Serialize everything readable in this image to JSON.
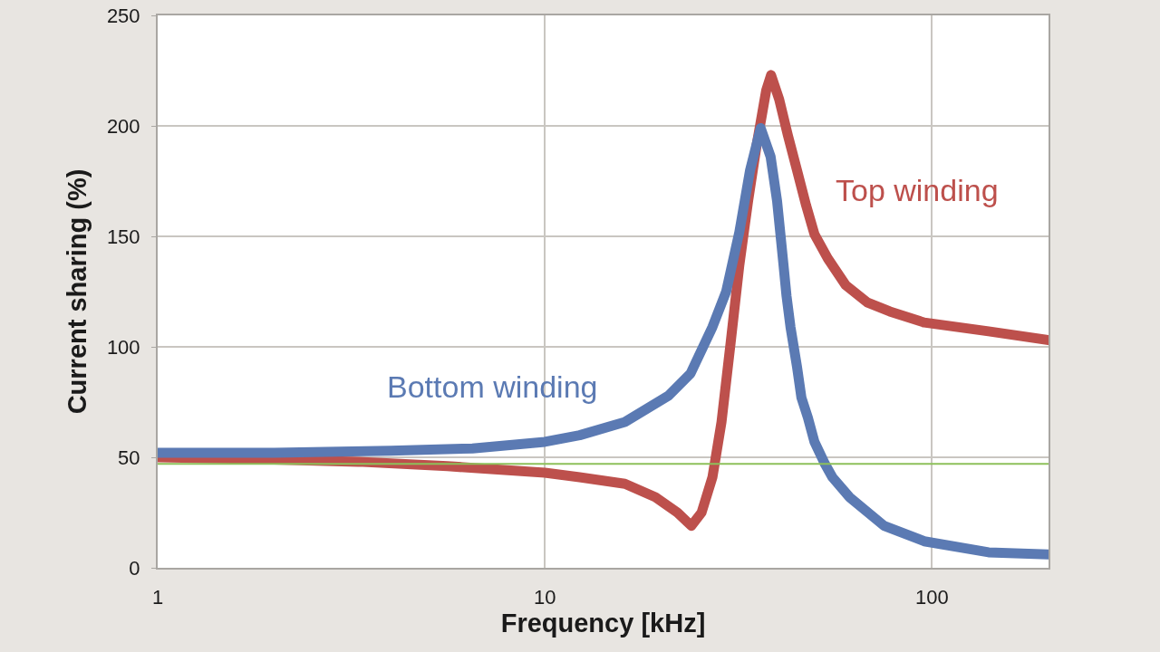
{
  "chart_data": {
    "type": "line",
    "xlabel": "Frequency [kHz]",
    "ylabel": "Current sharing (%)",
    "log": "x",
    "xlim": [
      1,
      200
    ],
    "xticks": [
      1,
      10,
      100
    ],
    "ylim": [
      0,
      250
    ],
    "yticks": [
      0,
      50,
      100,
      150,
      200,
      250
    ],
    "grid": true,
    "legend": false,
    "line_style": "solid",
    "series": [
      {
        "name": "Top winding",
        "color": "#bd504c",
        "x": [
          1,
          2,
          3.3,
          5.6,
          10,
          12.3,
          16.1,
          19.3,
          22,
          23.9,
          25.4,
          27.1,
          28.6,
          30.2,
          31.8,
          33.5,
          35.3,
          37.3,
          38.4,
          40.3,
          42.4,
          44.8,
          47.3,
          49.7,
          53.8,
          59.8,
          68.2,
          77.8,
          95.5,
          140,
          200
        ],
        "values": [
          50,
          49,
          48,
          46,
          43,
          41,
          38,
          32,
          25,
          19,
          25,
          41,
          66,
          102,
          137,
          166,
          192,
          216,
          223,
          212,
          196,
          180,
          164,
          151,
          140,
          128,
          120,
          116,
          111,
          107,
          103
        ]
      },
      {
        "name": "Bottom winding",
        "color": "#5b7ab3",
        "x": [
          1,
          2,
          4,
          6.5,
          10,
          12.3,
          16.1,
          20.9,
          23.8,
          27.1,
          29.4,
          31.8,
          33.9,
          36.1,
          38.3,
          39.8,
          41.3,
          42.1,
          43.1,
          44.8,
          46,
          47.8,
          49.7,
          52.9,
          55.3,
          61.2,
          75.2,
          95.5,
          140,
          200
        ],
        "values": [
          52,
          52,
          53,
          54,
          57,
          60,
          66,
          78,
          88,
          109,
          125,
          152,
          180,
          199,
          186,
          166,
          138,
          123,
          109,
          91,
          77,
          68,
          57,
          47,
          41,
          32,
          19,
          12,
          7,
          6
        ]
      }
    ],
    "ref_lines": [
      {
        "axis": "y",
        "value": 47,
        "color": "#8dc05a"
      }
    ]
  }
}
